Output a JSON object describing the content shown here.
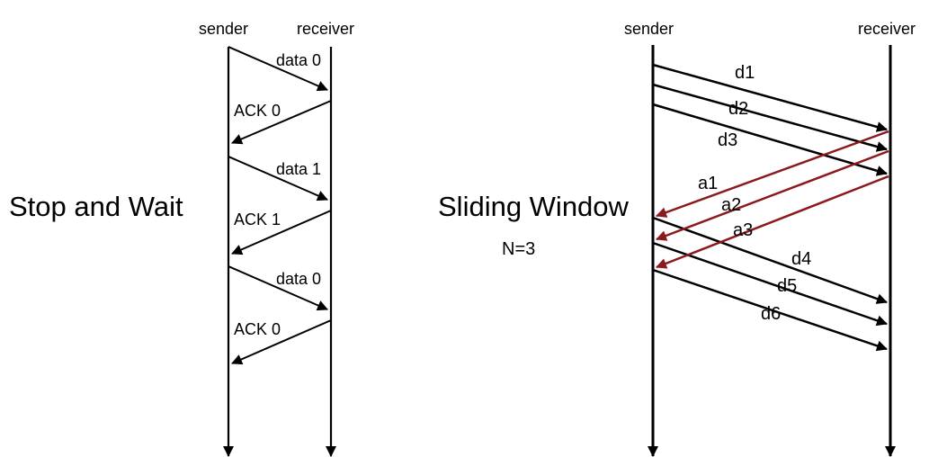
{
  "left_diagram": {
    "title": "Stop and Wait",
    "sender_label": "sender",
    "receiver_label": "receiver",
    "messages": [
      {
        "label": "data 0",
        "direction": "to-receiver"
      },
      {
        "label": "ACK 0",
        "direction": "to-sender"
      },
      {
        "label": "data 1",
        "direction": "to-receiver"
      },
      {
        "label": "ACK 1",
        "direction": "to-sender"
      },
      {
        "label": "data 0",
        "direction": "to-receiver"
      },
      {
        "label": "ACK 0",
        "direction": "to-sender"
      }
    ]
  },
  "right_diagram": {
    "title": "Sliding Window",
    "window_size": "N=3",
    "sender_label": "sender",
    "receiver_label": "receiver",
    "data_messages": [
      "d1",
      "d2",
      "d3",
      "d4",
      "d5",
      "d6"
    ],
    "ack_messages": [
      "a1",
      "a2",
      "a3"
    ],
    "colors": {
      "data_arrow": "#000000",
      "ack_arrow": "#8b1a1f"
    }
  }
}
